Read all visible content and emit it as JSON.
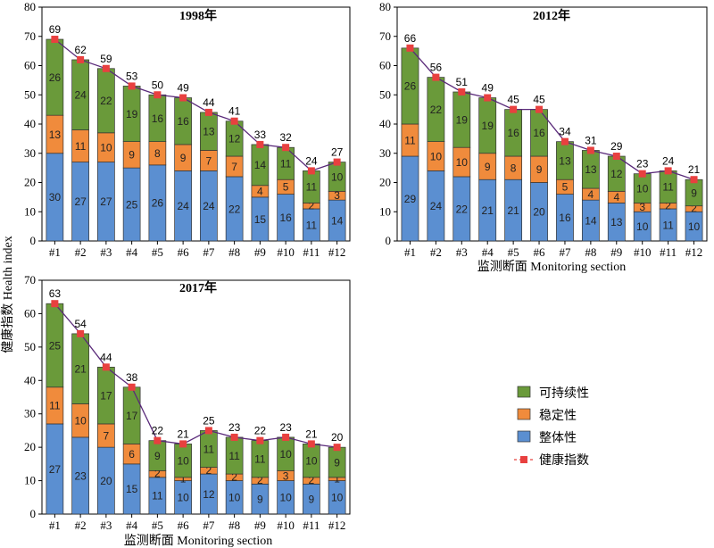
{
  "chart_data": [
    {
      "type": "bar",
      "title": "1998年",
      "categories": [
        "#1",
        "#2",
        "#3",
        "#4",
        "#5",
        "#6",
        "#7",
        "#8",
        "#9",
        "#10",
        "#11",
        "#12"
      ],
      "series": [
        {
          "name": "整体性",
          "values": [
            30,
            27,
            27,
            25,
            26,
            24,
            24,
            22,
            15,
            16,
            11,
            14
          ]
        },
        {
          "name": "稳定性",
          "values": [
            13,
            11,
            10,
            9,
            8,
            9,
            7,
            7,
            4,
            5,
            2,
            3
          ]
        },
        {
          "name": "可持续性",
          "values": [
            26,
            24,
            22,
            19,
            16,
            16,
            13,
            12,
            14,
            11,
            11,
            10
          ]
        },
        {
          "name": "健康指数",
          "values": [
            69,
            62,
            59,
            53,
            50,
            49,
            44,
            41,
            33,
            32,
            24,
            27
          ]
        }
      ],
      "ylim": [
        0,
        80
      ],
      "yticks": [
        0,
        10,
        20,
        30,
        40,
        50,
        60,
        70,
        80
      ],
      "ylabel": "健康指数 Health index",
      "xlabel": ""
    },
    {
      "type": "bar",
      "title": "2012年",
      "categories": [
        "#1",
        "#2",
        "#3",
        "#4",
        "#5",
        "#6",
        "#7",
        "#8",
        "#9",
        "#10",
        "#11",
        "#12"
      ],
      "series": [
        {
          "name": "整体性",
          "values": [
            29,
            24,
            22,
            21,
            21,
            20,
            16,
            14,
            13,
            10,
            11,
            10
          ]
        },
        {
          "name": "稳定性",
          "values": [
            11,
            10,
            10,
            9,
            8,
            9,
            5,
            4,
            4,
            3,
            2,
            2
          ]
        },
        {
          "name": "可持续性",
          "values": [
            26,
            22,
            19,
            19,
            16,
            16,
            13,
            13,
            12,
            10,
            11,
            9
          ]
        },
        {
          "name": "健康指数",
          "values": [
            66,
            56,
            51,
            49,
            45,
            45,
            34,
            31,
            29,
            23,
            24,
            21
          ]
        }
      ],
      "ylim": [
        0,
        80
      ],
      "yticks": [
        0,
        10,
        20,
        30,
        40,
        50,
        60,
        70,
        80
      ],
      "xlabel": "监测断面 Monitoring section"
    },
    {
      "type": "bar",
      "title": "2017年",
      "categories": [
        "#1",
        "#2",
        "#3",
        "#4",
        "#5",
        "#6",
        "#7",
        "#8",
        "#9",
        "#10",
        "#11",
        "#12"
      ],
      "series": [
        {
          "name": "整体性",
          "values": [
            27,
            23,
            20,
            15,
            11,
            10,
            12,
            10,
            9,
            10,
            9,
            10
          ]
        },
        {
          "name": "稳定性",
          "values": [
            11,
            10,
            7,
            6,
            2,
            1,
            2,
            2,
            2,
            3,
            2,
            1
          ]
        },
        {
          "name": "可持续性",
          "values": [
            25,
            21,
            17,
            17,
            9,
            10,
            11,
            11,
            11,
            10,
            10,
            9
          ]
        },
        {
          "name": "健康指数",
          "values": [
            63,
            54,
            44,
            38,
            22,
            21,
            25,
            23,
            22,
            23,
            21,
            20
          ]
        }
      ],
      "ylim": [
        0,
        70
      ],
      "yticks": [
        0,
        10,
        20,
        30,
        40,
        50,
        60,
        70
      ],
      "xlabel": "监测断面 Monitoring section"
    }
  ],
  "legend": [
    {
      "label": "可持续性",
      "color": "#6a9a3a",
      "kind": "bar"
    },
    {
      "label": "稳定性",
      "color": "#f08b3c",
      "kind": "bar"
    },
    {
      "label": "整体性",
      "color": "#5b8fd1",
      "kind": "bar"
    },
    {
      "label": "健康指数",
      "color": "#e8403f",
      "kind": "line"
    }
  ],
  "colors": {
    "整体性": "#5b8fd1",
    "稳定性": "#f08b3c",
    "可持续性": "#6a9a3a",
    "健康指数_marker": "#e8403f",
    "健康指数_line": "#5a2a7a"
  }
}
